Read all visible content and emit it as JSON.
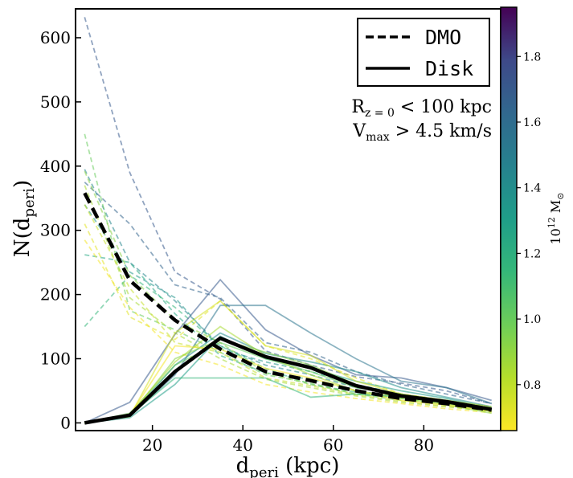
{
  "chart_data": {
    "type": "line",
    "xlabel_main": "d",
    "xlabel_sub": "peri",
    "xlabel_unit": " (kpc)",
    "ylabel_main": "N(d",
    "ylabel_sub": "peri",
    "ylabel_close": ")",
    "xlim": [
      3,
      97
    ],
    "ylim": [
      -12,
      645
    ],
    "xticks": [
      20,
      40,
      60,
      80
    ],
    "yticks": [
      0,
      100,
      200,
      300,
      400,
      500,
      600
    ],
    "x": [
      5,
      15,
      25,
      35,
      45,
      55,
      65,
      75,
      85,
      95
    ],
    "legend": {
      "position": "top-right",
      "entries": [
        {
          "label": "DMO",
          "style": "dashed"
        },
        {
          "label": "Disk",
          "style": "solid"
        }
      ]
    },
    "annotation": {
      "line1_main": "R",
      "line1_sub": "z = 0",
      "line1_rest": " < 100 kpc",
      "line2_main": "V",
      "line2_sub": "max",
      "line2_rest": " > 4.5 km/s"
    },
    "colorbar": {
      "label_base": "10",
      "label_exp": "12",
      "label_unit": "  M",
      "label_sub": "⊙",
      "range": [
        0.66,
        1.95
      ],
      "ticks": [
        "0.8",
        "1.0",
        "1.2",
        "1.4",
        "1.6",
        "1.8"
      ],
      "colormap": "viridis"
    },
    "mean_series": [
      {
        "name": "DMO",
        "style": "dashed",
        "color": "#000000",
        "values": [
          358,
          222,
          160,
          115,
          80,
          66,
          50,
          38,
          30,
          20
        ]
      },
      {
        "name": "Disk",
        "style": "solid",
        "color": "#000000",
        "values": [
          0,
          12,
          80,
          132,
          103,
          86,
          58,
          42,
          33,
          21
        ]
      }
    ],
    "dmo_series": [
      {
        "mass": 1.7,
        "values": [
          632,
          390,
          235,
          193,
          112,
          90,
          72,
          62,
          50,
          30
        ]
      },
      {
        "mass": 1.65,
        "values": [
          375,
          310,
          215,
          195,
          125,
          110,
          80,
          60,
          45,
          30
        ]
      },
      {
        "mass": 1.45,
        "values": [
          395,
          250,
          190,
          120,
          90,
          75,
          55,
          45,
          35,
          25
        ]
      },
      {
        "mass": 1.35,
        "values": [
          340,
          235,
          195,
          115,
          95,
          80,
          60,
          45,
          35,
          25
        ]
      },
      {
        "mass": 1.25,
        "values": [
          262,
          250,
          170,
          105,
          78,
          68,
          50,
          40,
          32,
          22
        ]
      },
      {
        "mass": 1.15,
        "values": [
          150,
          230,
          180,
          120,
          85,
          60,
          48,
          38,
          30,
          22
        ]
      },
      {
        "mass": 1.0,
        "values": [
          450,
          175,
          145,
          110,
          75,
          62,
          45,
          35,
          30,
          20
        ]
      },
      {
        "mass": 0.92,
        "values": [
          392,
          230,
          160,
          125,
          78,
          60,
          45,
          38,
          30,
          18
        ]
      },
      {
        "mass": 0.85,
        "values": [
          370,
          195,
          140,
          100,
          68,
          55,
          42,
          32,
          25,
          18
        ]
      },
      {
        "mass": 0.78,
        "values": [
          340,
          210,
          125,
          110,
          70,
          58,
          44,
          34,
          26,
          18
        ]
      },
      {
        "mass": 0.72,
        "values": [
          310,
          165,
          130,
          190,
          120,
          100,
          70,
          45,
          35,
          22
        ]
      },
      {
        "mass": 0.68,
        "values": [
          285,
          180,
          110,
          90,
          60,
          48,
          38,
          30,
          22,
          16
        ]
      }
    ],
    "disk_series": [
      {
        "mass": 1.7,
        "values": [
          0,
          32,
          138,
          223,
          145,
          105,
          75,
          70,
          55,
          35
        ]
      },
      {
        "mass": 1.55,
        "values": [
          0,
          10,
          75,
          183,
          183,
          140,
          100,
          65,
          55,
          30
        ]
      },
      {
        "mass": 1.4,
        "values": [
          0,
          10,
          90,
          140,
          108,
          95,
          80,
          55,
          40,
          25
        ]
      },
      {
        "mass": 1.3,
        "values": [
          0,
          8,
          60,
          135,
          100,
          85,
          65,
          50,
          38,
          22
        ]
      },
      {
        "mass": 1.15,
        "values": [
          0,
          12,
          70,
          70,
          70,
          40,
          45,
          40,
          32,
          22
        ]
      },
      {
        "mass": 1.0,
        "values": [
          0,
          15,
          90,
          125,
          100,
          80,
          55,
          45,
          30,
          18
        ]
      },
      {
        "mass": 0.92,
        "values": [
          0,
          10,
          100,
          130,
          110,
          90,
          60,
          38,
          28,
          15
        ]
      },
      {
        "mass": 0.85,
        "values": [
          0,
          14,
          95,
          150,
          105,
          75,
          50,
          40,
          30,
          20
        ]
      },
      {
        "mass": 0.75,
        "values": [
          0,
          10,
          140,
          190,
          120,
          105,
          65,
          45,
          35,
          25
        ]
      },
      {
        "mass": 0.68,
        "values": [
          0,
          12,
          120,
          115,
          85,
          70,
          50,
          35,
          28,
          18
        ]
      }
    ]
  }
}
